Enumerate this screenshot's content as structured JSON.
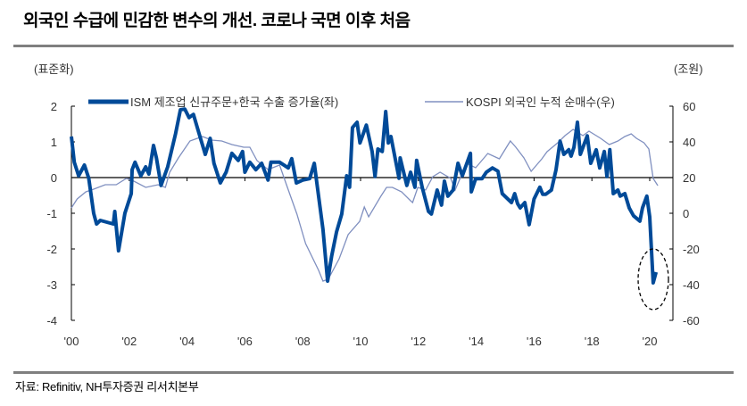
{
  "title": "외국인 수급에 민감한 변수의 개선. 코로나 국면 이후 처음",
  "source": "자료: Refinitiv, NH투자증권 리서치본부",
  "colors": {
    "series1": "#004a98",
    "series2": "#8090c0",
    "axis": "#000000",
    "rule": "#7f7f7f"
  },
  "chart_data": {
    "type": "line",
    "left_unit": "(표준화)",
    "right_unit": "(조원)",
    "left_ylim": [
      -4,
      2
    ],
    "right_ylim": [
      -60,
      60
    ],
    "left_ticks": [
      "2",
      "1",
      "0",
      "-1",
      "-2",
      "-3",
      "-4"
    ],
    "right_ticks": [
      "60",
      "40",
      "20",
      "0",
      "-20",
      "-40",
      "-60"
    ],
    "x_ticks": [
      "'00",
      "'02",
      "'04",
      "'06",
      "'08",
      "'10",
      "'12",
      "'14",
      "'16",
      "'18",
      "'20"
    ],
    "x_range": [
      2000,
      2020.3
    ],
    "legend_position": "top",
    "annotation": "dashed-ellipse around 2020 drop",
    "series": [
      {
        "name": "ISM 제조업 신규주문+한국 수출 증가율(좌)",
        "axis": "left",
        "x": [
          2000.0,
          2000.1,
          2000.25,
          2000.45,
          2000.6,
          2000.77,
          2000.87,
          2001.0,
          2001.45,
          2001.5,
          2001.63,
          2001.85,
          2002.07,
          2002.1,
          2002.2,
          2002.4,
          2002.57,
          2002.68,
          2002.84,
          2002.94,
          2003.1,
          2003.33,
          2003.6,
          2003.77,
          2003.92,
          2004.07,
          2004.22,
          2004.42,
          2004.63,
          2004.8,
          2004.93,
          2005.15,
          2005.35,
          2005.55,
          2005.77,
          2005.92,
          2006.0,
          2006.17,
          2006.38,
          2006.58,
          2006.8,
          2006.9,
          2007.2,
          2007.5,
          2007.62,
          2007.78,
          2008.0,
          2008.24,
          2008.4,
          2008.48,
          2008.7,
          2008.86,
          2009.0,
          2009.17,
          2009.35,
          2009.52,
          2009.62,
          2009.72,
          2009.88,
          2009.98,
          2010.2,
          2010.4,
          2010.5,
          2010.6,
          2010.75,
          2010.87,
          2010.96,
          2011.05,
          2011.33,
          2011.37,
          2011.6,
          2011.73,
          2011.88,
          2011.94,
          2012.13,
          2012.35,
          2012.45,
          2012.65,
          2012.8,
          2012.9,
          2013.02,
          2013.2,
          2013.37,
          2013.52,
          2013.8,
          2013.83,
          2013.98,
          2014.2,
          2014.35,
          2014.56,
          2014.75,
          2014.9,
          2015.22,
          2015.33,
          2015.43,
          2015.52,
          2015.68,
          2015.83,
          2016.0,
          2016.2,
          2016.3,
          2016.4,
          2016.6,
          2016.76,
          2016.9,
          2017.03,
          2017.2,
          2017.28,
          2017.38,
          2017.5,
          2017.6,
          2017.84,
          2017.96,
          2018.15,
          2018.27,
          2018.43,
          2018.52,
          2018.62,
          2018.74,
          2018.9,
          2018.98,
          2019.14,
          2019.29,
          2019.44,
          2019.66,
          2019.75,
          2019.9,
          2020.0,
          2020.12,
          2020.22
        ],
        "y": [
          1.15,
          0.43,
          0.05,
          0.35,
          -0.02,
          -1.0,
          -1.3,
          -1.2,
          -1.3,
          -0.95,
          -2.05,
          -1.0,
          -0.45,
          0.22,
          0.43,
          0.05,
          0.3,
          0.1,
          0.9,
          0.55,
          -0.22,
          0.3,
          1.22,
          1.9,
          1.92,
          1.68,
          1.77,
          1.22,
          0.65,
          1.1,
          0.4,
          -0.15,
          0.15,
          0.68,
          0.48,
          0.73,
          0.15,
          0.43,
          0.22,
          0.4,
          -0.07,
          0.43,
          0.43,
          0.27,
          0.53,
          -0.15,
          -0.07,
          -0.03,
          0.4,
          -0.1,
          -1.45,
          -2.9,
          -2.2,
          -1.52,
          -1.02,
          0.05,
          -0.27,
          1.4,
          1.55,
          0.97,
          1.47,
          0.73,
          0.03,
          0.8,
          0.73,
          1.85,
          0.97,
          1.15,
          -0.02,
          0.55,
          -0.22,
          0.15,
          -0.27,
          0.48,
          -0.27,
          -0.95,
          -1.02,
          -0.35,
          -0.77,
          -0.1,
          -0.52,
          -0.35,
          0.4,
          0.05,
          0.68,
          -0.4,
          -0.03,
          -0.03,
          0.15,
          0.27,
          0.18,
          -0.45,
          -0.7,
          -0.45,
          -0.73,
          -0.85,
          -0.7,
          -1.32,
          -0.6,
          -0.27,
          -0.47,
          -0.47,
          -0.35,
          0.22,
          1.02,
          0.65,
          0.78,
          0.6,
          0.85,
          1.55,
          0.65,
          1.17,
          0.4,
          0.78,
          0.27,
          0.73,
          0.03,
          0.78,
          -0.45,
          -0.35,
          -0.52,
          -0.45,
          -0.85,
          -1.07,
          -1.22,
          -0.85,
          -0.52,
          -1.1,
          -2.95,
          -2.65
        ]
      },
      {
        "name": "KOSPI 외국인 누적 순매수(우)",
        "axis": "right",
        "x": [
          2000.0,
          2000.2,
          2000.5,
          2000.77,
          2001.17,
          2001.55,
          2001.9,
          2002.1,
          2002.57,
          2003.0,
          2003.25,
          2003.4,
          2003.7,
          2004.1,
          2004.53,
          2004.85,
          2005.2,
          2005.55,
          2005.96,
          2006.17,
          2006.42,
          2006.8,
          2007.2,
          2007.47,
          2007.8,
          2008.1,
          2008.55,
          2008.7,
          2008.88,
          2009.26,
          2009.57,
          2009.97,
          2010.13,
          2010.28,
          2010.7,
          2010.9,
          2011.1,
          2011.42,
          2011.73,
          2011.8,
          2011.98,
          2012.25,
          2012.5,
          2012.75,
          2013.12,
          2013.27,
          2013.48,
          2013.67,
          2013.98,
          2014.4,
          2014.8,
          2015.18,
          2015.37,
          2015.65,
          2015.9,
          2016.27,
          2016.45,
          2016.82,
          2017.07,
          2017.35,
          2017.69,
          2017.9,
          2018.3,
          2018.6,
          2018.9,
          2019.14,
          2019.36,
          2019.54,
          2019.8,
          2019.97,
          2020.12,
          2020.28
        ],
        "y": [
          3,
          8,
          12,
          13.5,
          16,
          16,
          19.5,
          18.5,
          14.5,
          16,
          14.5,
          23,
          31,
          40.5,
          43,
          41,
          40.5,
          38.5,
          37,
          37,
          29.5,
          24.5,
          27,
          14.5,
          -0.5,
          -17,
          -32,
          -38,
          -37,
          -25.5,
          -12,
          -4.5,
          3.5,
          -2,
          9.5,
          14.5,
          14.5,
          12,
          7,
          6,
          14.5,
          13,
          20.5,
          23,
          19.5,
          13,
          21,
          28,
          25.5,
          33.5,
          30.5,
          40.5,
          37,
          31,
          23.5,
          30.5,
          34.5,
          39.5,
          43.5,
          47,
          43.5,
          46,
          42,
          38.5,
          40.5,
          43,
          44.5,
          42,
          39.5,
          36,
          19.5,
          15.5
        ]
      }
    ]
  }
}
